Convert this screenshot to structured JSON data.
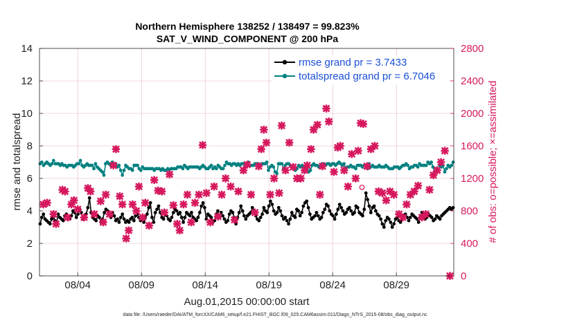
{
  "chart_data": {
    "type": "line",
    "title_line1": "Northern Hemisphere 138252 / 138497 = 99.823%",
    "title_line2": "SAT_V_WIND_COMPONENT @ 200 hPa",
    "xlabel": "Aug.01,2015 00:00:00 start",
    "ylabel_left": "rmse and totalspread",
    "ylabel_right": "# of obs: o=possible; ×=assimilated",
    "footnote": "data file: /Users/raeder/DAI/ATM_forcXX/CAM6_setup/f.e21.FHIST_BGC.f09_025.CAM6assim.011/Diags_NTrS_2015-08/obs_diag_output.nc",
    "x_range_days": [
      1,
      33.5
    ],
    "x_ticks": [
      {
        "day": 4,
        "label": "08/04"
      },
      {
        "day": 9,
        "label": "08/09"
      },
      {
        "day": 14,
        "label": "08/14"
      },
      {
        "day": 19,
        "label": "08/19"
      },
      {
        "day": 24,
        "label": "08/24"
      },
      {
        "day": 29,
        "label": "08/29"
      }
    ],
    "ylim_left": [
      0,
      14
    ],
    "y_ticks_left": [
      "0",
      "2",
      "4",
      "6",
      "8",
      "10",
      "12",
      "14"
    ],
    "ylim_right": [
      0,
      2800
    ],
    "y_ticks_right": [
      "0",
      "400",
      "800",
      "1200",
      "1600",
      "2000",
      "2400",
      "2800"
    ],
    "colors": {
      "rmse": "#000000",
      "totalspread": "#008080",
      "obs": "#d6185e",
      "legend_text": "#1a4fd6",
      "axis": "#222222",
      "grid": "#e6b3c6"
    },
    "series": [
      {
        "name": "rmse grand pr = 3.7433",
        "axis": "left",
        "values": [
          3.2,
          3.6,
          3.8,
          3.5,
          3.4,
          3.3,
          3.2,
          3.5,
          3.6,
          3.4,
          3.3,
          3.8,
          3.6,
          3.5,
          3.4,
          3.7,
          3.8,
          3.6,
          3.5,
          3.7,
          4.0,
          3.9,
          3.6,
          3.8,
          4.1,
          3.9,
          3.5,
          3.6,
          3.8,
          4.2,
          4.8,
          3.9,
          3.6,
          3.5,
          3.4,
          3.7,
          3.6,
          3.3,
          3.5,
          3.9,
          4.1,
          4.0,
          3.8,
          3.6,
          3.9,
          3.7,
          3.4,
          3.5,
          3.3,
          3.6,
          3.8,
          3.5,
          3.3,
          3.4,
          3.3,
          3.5,
          3.6,
          3.4,
          3.7,
          3.8,
          3.6,
          3.4,
          3.5,
          3.3,
          3.6,
          3.8,
          4.2,
          4.5,
          3.6,
          3.3,
          3.9,
          4.1,
          4.3,
          3.9,
          3.6,
          3.5,
          3.8,
          3.7,
          3.5,
          3.4,
          3.6,
          3.9,
          4.1,
          4.0,
          3.8,
          3.9,
          3.6,
          3.3,
          3.6,
          3.9,
          3.8,
          3.7,
          3.9,
          3.6,
          3.5,
          3.4,
          3.6,
          3.9,
          4.3,
          4.5,
          4.2,
          3.5,
          3.8,
          3.7,
          3.6,
          3.3,
          3.4,
          3.8,
          4.0,
          3.6,
          3.9,
          3.7,
          3.5,
          3.3,
          3.4,
          3.8,
          4.0,
          3.9,
          3.6,
          3.2,
          3.6,
          3.9,
          4.3,
          4.0,
          3.7,
          3.5,
          3.7,
          3.8,
          3.9,
          4.2,
          4.0,
          3.7,
          3.5,
          3.4,
          3.6,
          3.8,
          4.2,
          4.0,
          3.9,
          4.3,
          4.6,
          4.4,
          4.0,
          3.8,
          3.9,
          4.2,
          4.0,
          3.7,
          3.5,
          3.6,
          3.4,
          3.2,
          3.5,
          3.9,
          3.7,
          3.6,
          4.1,
          4.0,
          3.7,
          3.9,
          4.3,
          4.5,
          4.6,
          4.2,
          3.8,
          3.5,
          3.6,
          3.7,
          3.9,
          3.7,
          3.5,
          3.6,
          3.9,
          4.1,
          4.4,
          4.3,
          4.0,
          3.8,
          3.7,
          3.5,
          3.8,
          4.1,
          4.4,
          4.2,
          4.0,
          3.8,
          3.9,
          4.1,
          4.2,
          4.0,
          3.8,
          3.9,
          4.3,
          4.2,
          3.9,
          3.8,
          3.7,
          4.1,
          5.1,
          4.7,
          4.3,
          3.9,
          4.2,
          4.3,
          4.0,
          3.8,
          3.7,
          3.5,
          3.2,
          3.0,
          3.4,
          3.6,
          3.5,
          3.3,
          3.0,
          3.2,
          3.5,
          3.6,
          3.4,
          3.3,
          3.5,
          3.7,
          3.8,
          3.6,
          3.4,
          3.6,
          3.8,
          3.7,
          3.6,
          3.5,
          3.3,
          3.6,
          3.9,
          3.7,
          3.5,
          3.6,
          3.8,
          3.7,
          3.6,
          3.4,
          3.5,
          3.7,
          3.6,
          3.5,
          3.7,
          3.8,
          3.9,
          4.0,
          4.1,
          4.2,
          4.1,
          4.2
        ]
      },
      {
        "name": "totalspread grand pr = 6.7046",
        "axis": "left",
        "values": [
          6.9,
          7.0,
          6.8,
          6.9,
          7.0,
          6.9,
          6.8,
          6.9,
          7.1,
          6.9,
          6.9,
          6.9,
          6.8,
          6.9,
          6.8,
          6.8,
          6.7,
          6.8,
          6.8,
          6.8,
          6.7,
          6.8,
          6.9,
          6.9,
          7.1,
          6.8,
          6.7,
          6.8,
          6.9,
          6.8,
          6.8,
          6.8,
          6.6,
          6.9,
          6.7,
          6.6,
          6.5,
          6.4,
          6.2,
          6.9,
          7.0,
          6.9,
          6.8,
          7.0,
          6.9,
          6.9,
          6.7,
          6.8,
          6.5,
          6.2,
          6.5,
          6.8,
          6.7,
          6.6,
          6.6,
          6.5,
          6.8,
          6.8,
          6.8,
          6.6,
          6.5,
          6.7,
          6.6,
          6.6,
          6.6,
          6.6,
          6.6,
          6.6,
          6.5,
          6.6,
          6.6,
          6.6,
          6.5,
          6.6,
          6.5,
          6.5,
          6.6,
          6.5,
          6.6,
          6.6,
          6.6,
          6.6,
          6.7,
          6.7,
          6.7,
          6.6,
          6.8,
          6.7,
          6.6,
          6.7,
          6.7,
          6.7,
          6.7,
          6.7,
          6.7,
          6.6,
          6.7,
          6.8,
          6.7,
          6.6,
          6.6,
          6.7,
          6.8,
          6.6,
          6.7,
          6.6,
          6.8,
          6.7,
          6.6,
          6.6,
          6.8,
          7.0,
          6.9,
          6.9,
          6.8,
          6.9,
          6.9,
          6.8,
          6.9,
          6.8,
          6.9,
          6.9,
          6.7,
          6.9,
          7.0,
          6.8,
          6.8,
          6.8,
          6.9,
          6.9,
          6.9,
          6.8,
          6.9,
          6.9,
          6.9,
          7.0,
          6.5,
          6.7,
          6.8,
          6.7,
          6.4,
          6.3,
          6.9,
          6.9,
          6.9,
          6.6,
          6.8,
          6.9,
          6.9,
          6.8,
          6.7,
          6.6,
          6.5,
          6.6,
          6.8,
          6.7,
          6.8,
          6.7,
          6.5,
          6.6,
          6.4,
          6.5,
          6.8,
          6.9,
          6.8,
          6.8,
          6.7,
          6.8,
          6.9,
          6.9,
          6.8,
          6.9,
          6.9,
          6.8,
          6.9,
          6.9,
          6.8,
          6.9,
          7.0,
          6.9,
          6.8,
          6.9,
          6.6,
          6.7,
          6.7,
          6.8,
          6.7,
          6.7,
          6.6,
          6.8,
          6.8,
          6.8,
          6.7,
          6.8,
          6.8,
          6.6,
          6.9,
          6.7,
          6.8,
          6.7,
          6.7,
          6.7,
          6.8,
          6.7,
          6.7,
          6.7,
          6.8,
          6.7,
          6.6,
          6.6,
          6.6,
          6.7,
          6.7,
          6.7,
          6.6,
          6.7,
          6.8,
          6.8,
          6.9,
          6.8,
          6.6,
          6.7,
          6.7,
          6.8,
          6.8,
          6.7,
          6.9,
          6.8,
          6.8,
          6.8,
          6.8,
          7.0,
          6.9,
          7.0,
          6.7,
          6.4,
          6.6,
          6.5,
          6.8,
          6.7,
          6.8,
          6.4,
          6.6,
          6.8,
          6.7,
          6.8,
          7.0
        ]
      }
    ],
    "obs_assimilated": {
      "axis": "right",
      "points": [
        {
          "day": 1.3,
          "v": 880
        },
        {
          "day": 1.6,
          "v": 900
        },
        {
          "day": 2.1,
          "v": 760
        },
        {
          "day": 2.3,
          "v": 640
        },
        {
          "day": 2.8,
          "v": 1060
        },
        {
          "day": 3.0,
          "v": 1040
        },
        {
          "day": 3.2,
          "v": 720
        },
        {
          "day": 3.5,
          "v": 880
        },
        {
          "day": 3.7,
          "v": 930
        },
        {
          "day": 4.0,
          "v": 820
        },
        {
          "day": 4.5,
          "v": 720
        },
        {
          "day": 4.8,
          "v": 1080
        },
        {
          "day": 5.0,
          "v": 1040
        },
        {
          "day": 5.3,
          "v": 760
        },
        {
          "day": 5.8,
          "v": 920
        },
        {
          "day": 6.0,
          "v": 660
        },
        {
          "day": 6.2,
          "v": 1000
        },
        {
          "day": 6.5,
          "v": 760
        },
        {
          "day": 6.8,
          "v": 1360
        },
        {
          "day": 7.0,
          "v": 1560
        },
        {
          "day": 7.3,
          "v": 980
        },
        {
          "day": 7.5,
          "v": 880
        },
        {
          "day": 7.8,
          "v": 460
        },
        {
          "day": 8.0,
          "v": 560
        },
        {
          "day": 8.3,
          "v": 880
        },
        {
          "day": 8.6,
          "v": 800
        },
        {
          "day": 8.8,
          "v": 1100
        },
        {
          "day": 9.1,
          "v": 720
        },
        {
          "day": 9.3,
          "v": 900
        },
        {
          "day": 9.6,
          "v": 620
        },
        {
          "day": 10.0,
          "v": 1180
        },
        {
          "day": 10.3,
          "v": 1050
        },
        {
          "day": 10.6,
          "v": 1040
        },
        {
          "day": 10.8,
          "v": 780
        },
        {
          "day": 11.2,
          "v": 1250
        },
        {
          "day": 11.5,
          "v": 870
        },
        {
          "day": 11.8,
          "v": 640
        },
        {
          "day": 12.0,
          "v": 560
        },
        {
          "day": 12.3,
          "v": 880
        },
        {
          "day": 12.6,
          "v": 1000
        },
        {
          "day": 12.9,
          "v": 660
        },
        {
          "day": 13.2,
          "v": 900
        },
        {
          "day": 13.5,
          "v": 1000
        },
        {
          "day": 13.8,
          "v": 1610
        },
        {
          "day": 14.1,
          "v": 1020
        },
        {
          "day": 14.4,
          "v": 660
        },
        {
          "day": 14.7,
          "v": 1100
        },
        {
          "day": 15.0,
          "v": 730
        },
        {
          "day": 15.3,
          "v": 1000
        },
        {
          "day": 15.6,
          "v": 1200
        },
        {
          "day": 16.0,
          "v": 1100
        },
        {
          "day": 16.3,
          "v": 690
        },
        {
          "day": 16.6,
          "v": 1040
        },
        {
          "day": 17.0,
          "v": 1300
        },
        {
          "day": 17.3,
          "v": 1370
        },
        {
          "day": 17.6,
          "v": 1000
        },
        {
          "day": 17.9,
          "v": 780
        },
        {
          "day": 18.2,
          "v": 1350
        },
        {
          "day": 18.4,
          "v": 1560
        },
        {
          "day": 18.6,
          "v": 1800
        },
        {
          "day": 18.8,
          "v": 1640
        },
        {
          "day": 19.1,
          "v": 1000
        },
        {
          "day": 19.4,
          "v": 1200
        },
        {
          "day": 19.8,
          "v": 1020
        },
        {
          "day": 20.0,
          "v": 1850
        },
        {
          "day": 20.3,
          "v": 1300
        },
        {
          "day": 20.6,
          "v": 1640
        },
        {
          "day": 20.9,
          "v": 1340
        },
        {
          "day": 21.2,
          "v": 1200
        },
        {
          "day": 21.5,
          "v": 1200
        },
        {
          "day": 21.8,
          "v": 1300
        },
        {
          "day": 22.0,
          "v": 1360
        },
        {
          "day": 22.3,
          "v": 1560
        },
        {
          "day": 22.5,
          "v": 1800
        },
        {
          "day": 22.8,
          "v": 1860
        },
        {
          "day": 23.0,
          "v": 1000
        },
        {
          "day": 23.2,
          "v": 1350
        },
        {
          "day": 23.5,
          "v": 2060
        },
        {
          "day": 23.7,
          "v": 1900
        },
        {
          "day": 24.1,
          "v": 1280
        },
        {
          "day": 24.4,
          "v": 1580
        },
        {
          "day": 24.6,
          "v": 1600
        },
        {
          "day": 24.9,
          "v": 1300
        },
        {
          "day": 25.2,
          "v": 1100
        },
        {
          "day": 25.5,
          "v": 1500
        },
        {
          "day": 25.8,
          "v": 1200
        },
        {
          "day": 26.0,
          "v": 1540
        },
        {
          "day": 26.2,
          "v": 1880
        },
        {
          "day": 26.4,
          "v": 1870
        },
        {
          "day": 26.7,
          "v": 1350
        },
        {
          "day": 27.0,
          "v": 1560
        },
        {
          "day": 27.3,
          "v": 1600
        },
        {
          "day": 27.6,
          "v": 1040
        },
        {
          "day": 27.9,
          "v": 1020
        },
        {
          "day": 28.2,
          "v": 930
        },
        {
          "day": 28.5,
          "v": 1040
        },
        {
          "day": 28.8,
          "v": 1000
        },
        {
          "day": 29.2,
          "v": 760
        },
        {
          "day": 29.5,
          "v": 720
        },
        {
          "day": 29.8,
          "v": 880
        },
        {
          "day": 30.1,
          "v": 1000
        },
        {
          "day": 30.4,
          "v": 1040
        },
        {
          "day": 30.7,
          "v": 1110
        },
        {
          "day": 31.0,
          "v": 720
        },
        {
          "day": 31.3,
          "v": 760
        },
        {
          "day": 31.6,
          "v": 1060
        },
        {
          "day": 31.9,
          "v": 1240
        },
        {
          "day": 32.2,
          "v": 1300
        },
        {
          "day": 32.5,
          "v": 1400
        },
        {
          "day": 32.8,
          "v": 1540
        },
        {
          "day": 33.2,
          "v": 0
        }
      ]
    },
    "obs_possible": {
      "axis": "right",
      "points": [
        {
          "day": 24.5,
          "v": 1590
        },
        {
          "day": 26.3,
          "v": 1090
        }
      ]
    },
    "legend": [
      {
        "key": "rmse",
        "label": "rmse grand pr = 3.7433"
      },
      {
        "key": "totalspread",
        "label": "totalspread grand pr = 6.7046"
      }
    ]
  }
}
